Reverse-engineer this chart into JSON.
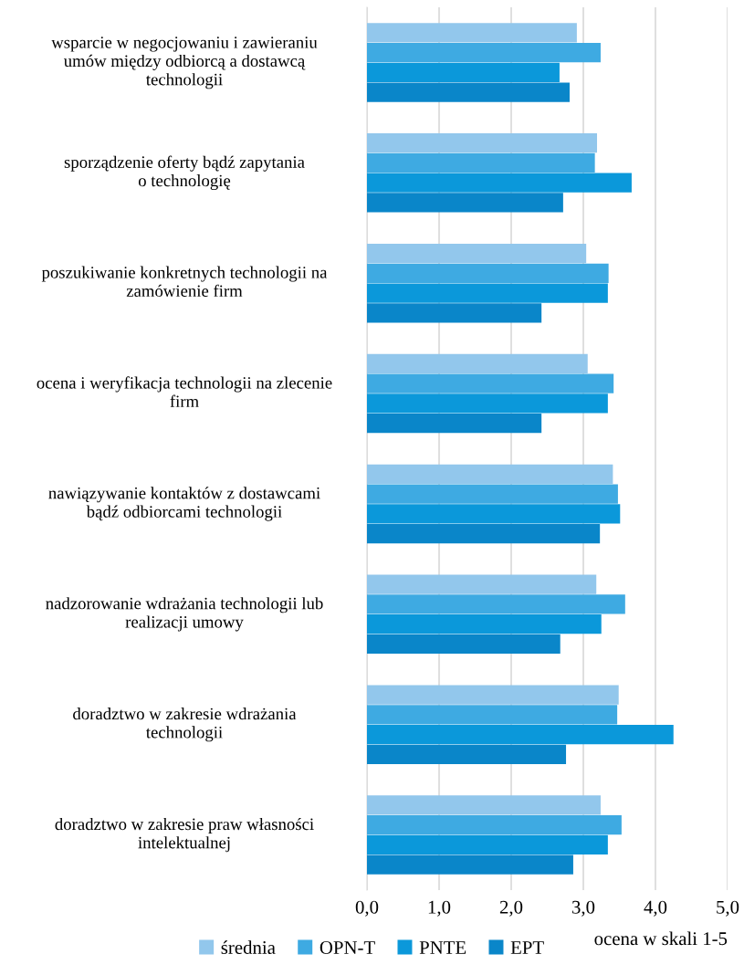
{
  "chart_data": {
    "type": "bar",
    "orientation": "horizontal",
    "xlabel": "ocena w skali 1-5",
    "categories": [
      "wsparcie w negocjowaniu i zawieraniu\numów między odbiorcą a dostawcą\ntechnologii",
      "sporządzenie oferty bądź zapytania\no technologię",
      "poszukiwanie konkretnych technologii na\nzamówienie firm",
      "ocena i weryfikacja technologii na zlecenie\nfirm",
      "nawiązywanie kontaktów z dostawcami\nbądź odbiorcami technologii",
      "nadzorowanie wdrażania technologii lub\nrealizacji umowy",
      "doradztwo w zakresie wdrażania\ntechnologii",
      "doradztwo w zakresie praw własności\nintelektualnej"
    ],
    "series": [
      {
        "name": "średnia",
        "color": "#92c7ec",
        "values": [
          2.91,
          3.19,
          3.04,
          3.06,
          3.41,
          3.18,
          3.49,
          3.24
        ]
      },
      {
        "name": "OPN-T",
        "color": "#3eaae2",
        "values": [
          3.24,
          3.16,
          3.35,
          3.42,
          3.48,
          3.58,
          3.47,
          3.53
        ]
      },
      {
        "name": "PNTE",
        "color": "#0b98da",
        "values": [
          2.67,
          3.67,
          3.34,
          3.34,
          3.51,
          3.25,
          4.25,
          3.34
        ]
      },
      {
        "name": "EPT",
        "color": "#0a86c9",
        "values": [
          2.81,
          2.72,
          2.42,
          2.42,
          3.23,
          2.68,
          2.76,
          2.86
        ]
      }
    ],
    "xlim": [
      0,
      5
    ],
    "xticks": [
      {
        "value": 0,
        "label": "0,0"
      },
      {
        "value": 1,
        "label": "1,0"
      },
      {
        "value": 2,
        "label": "2,0"
      },
      {
        "value": 3,
        "label": "3,0"
      },
      {
        "value": 4,
        "label": "4,0"
      },
      {
        "value": 5,
        "label": "5,0"
      }
    ],
    "grid": "x",
    "legend": "bottom"
  }
}
